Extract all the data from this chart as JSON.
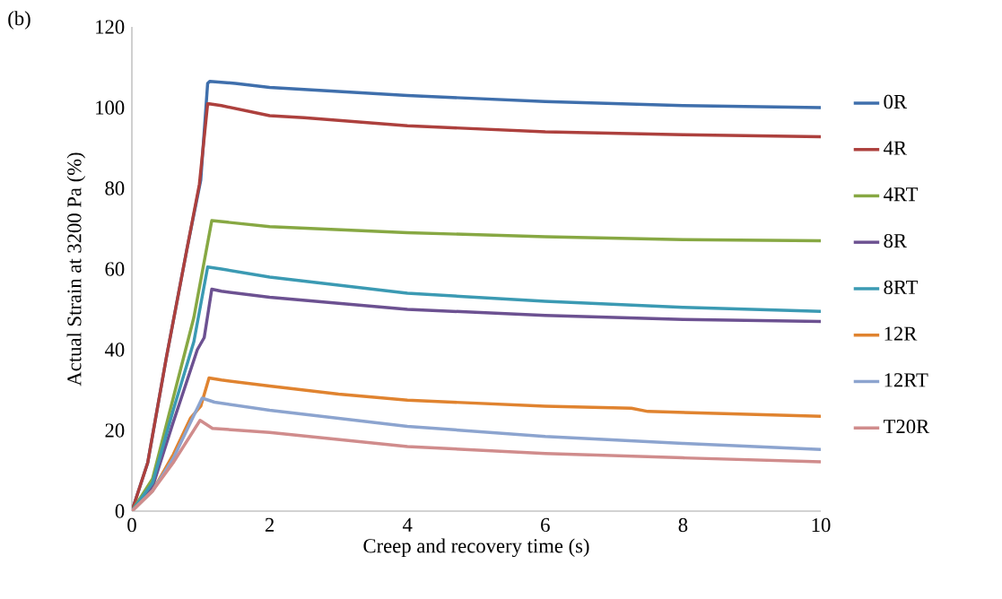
{
  "chart_data": {
    "type": "line",
    "xlabel": "Creep and recovery time (s)",
    "ylabel": "Actual Strain at 3200 Pa (%)",
    "annotations": [
      "(b)"
    ],
    "xlim": [
      0,
      10
    ],
    "xticks": [
      0,
      2,
      4,
      6,
      8,
      10
    ],
    "ylim": [
      0,
      120
    ],
    "yticks": [
      0,
      20,
      40,
      60,
      80,
      100,
      120
    ],
    "grid": false,
    "legend": "right",
    "marker": "none",
    "line_style": "solid",
    "series": [
      {
        "name": "0R",
        "color": "#3f6fac",
        "x": [
          0,
          0.23,
          0.5,
          0.8,
          1.0,
          1.1,
          1.13,
          1.5,
          2,
          4,
          6,
          8,
          10
        ],
        "values": [
          0,
          12,
          38,
          65,
          82,
          106,
          106.5,
          106,
          105,
          103,
          101.5,
          100.5,
          100
        ]
      },
      {
        "name": "4R",
        "color": "#ad403d",
        "x": [
          0,
          0.23,
          0.5,
          0.8,
          0.98,
          1.1,
          1.3,
          2,
          2.5,
          4,
          6,
          8,
          10
        ],
        "values": [
          0,
          12,
          38,
          65,
          81,
          101,
          100.5,
          98,
          97.5,
          95.5,
          94,
          93.3,
          92.8
        ]
      },
      {
        "name": "4RT",
        "color": "#87a843",
        "x": [
          0,
          0.3,
          0.6,
          0.9,
          1.16,
          2,
          4,
          6,
          8,
          10
        ],
        "values": [
          0,
          8,
          28,
          48,
          72,
          70.5,
          69,
          68,
          67.3,
          67
        ]
      },
      {
        "name": "8R",
        "color": "#6c5191",
        "x": [
          0,
          0.3,
          0.6,
          0.95,
          1.05,
          1.16,
          1.3,
          2,
          4,
          6,
          8,
          10
        ],
        "values": [
          0,
          6,
          22,
          40,
          43,
          55,
          54.5,
          53,
          50,
          48.5,
          47.5,
          47
        ]
      },
      {
        "name": "8RT",
        "color": "#3b9ab3",
        "x": [
          0,
          0.3,
          0.6,
          0.9,
          1.1,
          1.3,
          2,
          4,
          6,
          8,
          10
        ],
        "values": [
          0,
          7,
          25,
          42,
          60.5,
          60,
          58,
          54,
          52,
          50.5,
          49.5
        ]
      },
      {
        "name": "12R",
        "color": "#e0832f",
        "x": [
          0,
          0.3,
          0.6,
          0.85,
          1.0,
          1.12,
          1.3,
          2,
          3,
          4,
          6,
          7.25,
          7.49,
          10
        ],
        "values": [
          0,
          5,
          14,
          23,
          26,
          33,
          32.5,
          31,
          29,
          27.5,
          26,
          25.5,
          24.7,
          23.5
        ]
      },
      {
        "name": "12RT",
        "color": "#8ca4cf",
        "x": [
          0,
          0.3,
          0.6,
          1.02,
          1.2,
          2,
          4,
          6,
          8,
          10
        ],
        "values": [
          0,
          5,
          13,
          28,
          27,
          25,
          21,
          18.5,
          16.8,
          15.3
        ]
      },
      {
        "name": "T20R",
        "color": "#d08c8c",
        "x": [
          0,
          0.3,
          0.6,
          0.99,
          1.17,
          2,
          4,
          6,
          8,
          10
        ],
        "values": [
          0,
          5,
          12,
          22.5,
          20.5,
          19.5,
          16,
          14.3,
          13.2,
          12.2
        ]
      }
    ]
  }
}
